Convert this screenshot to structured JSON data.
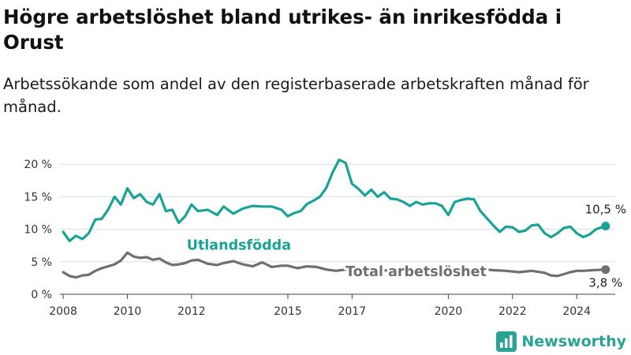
{
  "title": "Högre arbetslöshet bland utrikes- än inrikesfödda i Orust",
  "subtitle": "Arbetssökande som andel av den registerbaserade arbetskraften månad för månad.",
  "brand": {
    "name": "Newsworthy",
    "icon": "bar-chart-logo-icon",
    "color": "#2aa394"
  },
  "colors": {
    "foreign_born": "#1aa394",
    "total": "#6f6e74",
    "axis": "#333333",
    "grid": "#dddddd"
  },
  "chart_data": {
    "type": "line",
    "title": "Högre arbetslöshet bland utrikes- än inrikesfödda i Orust",
    "subtitle": "Arbetssökande som andel av den registerbaserade arbetskraften månad för månad.",
    "xlabel": "",
    "ylabel": "",
    "xlim": [
      2007.9,
      2025.2
    ],
    "ylim": [
      0,
      21
    ],
    "y_ticks": [
      0,
      5,
      10,
      15,
      20
    ],
    "y_tick_labels": [
      "0 %",
      "5 %",
      "10 %",
      "15 %",
      "20 %"
    ],
    "x_ticks": [
      2008,
      2010,
      2012,
      2015,
      2017,
      2020,
      2022,
      2024
    ],
    "x_tick_labels": [
      "2008",
      "2010",
      "2012",
      "2015",
      "2017",
      "2020",
      "2022",
      "2024"
    ],
    "grid": "horizontal",
    "legend": "direct labels on lines",
    "series": [
      {
        "name": "Utlandsfödda",
        "color": "#1aa394",
        "end_label": "10,5 %",
        "points": [
          [
            2008.0,
            9.6
          ],
          [
            2008.2,
            8.2
          ],
          [
            2008.4,
            9.0
          ],
          [
            2008.6,
            8.5
          ],
          [
            2008.8,
            9.4
          ],
          [
            2009.0,
            11.5
          ],
          [
            2009.2,
            11.6
          ],
          [
            2009.4,
            13.0
          ],
          [
            2009.6,
            15.0
          ],
          [
            2009.8,
            13.8
          ],
          [
            2010.0,
            16.3
          ],
          [
            2010.2,
            14.8
          ],
          [
            2010.4,
            15.4
          ],
          [
            2010.6,
            14.2
          ],
          [
            2010.8,
            13.8
          ],
          [
            2011.0,
            15.4
          ],
          [
            2011.2,
            12.8
          ],
          [
            2011.4,
            13.0
          ],
          [
            2011.6,
            11.0
          ],
          [
            2011.8,
            12.0
          ],
          [
            2012.0,
            13.8
          ],
          [
            2012.2,
            12.8
          ],
          [
            2012.5,
            13.0
          ],
          [
            2012.8,
            12.2
          ],
          [
            2013.0,
            13.5
          ],
          [
            2013.3,
            12.4
          ],
          [
            2013.6,
            13.2
          ],
          [
            2013.9,
            13.6
          ],
          [
            2014.2,
            13.5
          ],
          [
            2014.5,
            13.5
          ],
          [
            2014.8,
            13.0
          ],
          [
            2015.0,
            12.0
          ],
          [
            2015.2,
            12.5
          ],
          [
            2015.4,
            12.8
          ],
          [
            2015.6,
            13.9
          ],
          [
            2015.8,
            14.4
          ],
          [
            2016.0,
            15.0
          ],
          [
            2016.2,
            16.4
          ],
          [
            2016.4,
            18.8
          ],
          [
            2016.6,
            20.7
          ],
          [
            2016.8,
            20.2
          ],
          [
            2017.0,
            17.0
          ],
          [
            2017.2,
            16.2
          ],
          [
            2017.4,
            15.2
          ],
          [
            2017.6,
            16.1
          ],
          [
            2017.8,
            15.0
          ],
          [
            2018.0,
            15.7
          ],
          [
            2018.2,
            14.7
          ],
          [
            2018.4,
            14.6
          ],
          [
            2018.6,
            14.2
          ],
          [
            2018.8,
            13.6
          ],
          [
            2019.0,
            14.2
          ],
          [
            2019.2,
            13.8
          ],
          [
            2019.4,
            14.0
          ],
          [
            2019.6,
            14.0
          ],
          [
            2019.8,
            13.6
          ],
          [
            2020.0,
            12.2
          ],
          [
            2020.2,
            14.2
          ],
          [
            2020.4,
            14.5
          ],
          [
            2020.6,
            14.7
          ],
          [
            2020.8,
            14.6
          ],
          [
            2021.0,
            12.8
          ],
          [
            2021.2,
            11.7
          ],
          [
            2021.4,
            10.6
          ],
          [
            2021.6,
            9.6
          ],
          [
            2021.8,
            10.4
          ],
          [
            2022.0,
            10.3
          ],
          [
            2022.2,
            9.6
          ],
          [
            2022.4,
            9.8
          ],
          [
            2022.6,
            10.6
          ],
          [
            2022.8,
            10.7
          ],
          [
            2023.0,
            9.4
          ],
          [
            2023.2,
            8.8
          ],
          [
            2023.4,
            9.4
          ],
          [
            2023.6,
            10.2
          ],
          [
            2023.8,
            10.4
          ],
          [
            2024.0,
            9.4
          ],
          [
            2024.2,
            8.8
          ],
          [
            2024.4,
            9.2
          ],
          [
            2024.6,
            10.0
          ],
          [
            2024.9,
            10.5
          ]
        ]
      },
      {
        "name": "Total arbetslöshet",
        "color": "#6f6e74",
        "end_label": "3,8 %",
        "points": [
          [
            2008.0,
            3.4
          ],
          [
            2008.2,
            2.8
          ],
          [
            2008.4,
            2.6
          ],
          [
            2008.6,
            2.9
          ],
          [
            2008.8,
            3.0
          ],
          [
            2009.0,
            3.6
          ],
          [
            2009.2,
            4.0
          ],
          [
            2009.4,
            4.3
          ],
          [
            2009.6,
            4.6
          ],
          [
            2009.8,
            5.2
          ],
          [
            2010.0,
            6.4
          ],
          [
            2010.2,
            5.8
          ],
          [
            2010.4,
            5.6
          ],
          [
            2010.6,
            5.7
          ],
          [
            2010.8,
            5.3
          ],
          [
            2011.0,
            5.5
          ],
          [
            2011.2,
            4.9
          ],
          [
            2011.4,
            4.5
          ],
          [
            2011.6,
            4.6
          ],
          [
            2011.8,
            4.8
          ],
          [
            2012.0,
            5.2
          ],
          [
            2012.2,
            5.3
          ],
          [
            2012.5,
            4.7
          ],
          [
            2012.8,
            4.5
          ],
          [
            2013.0,
            4.8
          ],
          [
            2013.3,
            5.1
          ],
          [
            2013.6,
            4.6
          ],
          [
            2013.9,
            4.3
          ],
          [
            2014.2,
            4.9
          ],
          [
            2014.5,
            4.2
          ],
          [
            2014.8,
            4.4
          ],
          [
            2015.0,
            4.4
          ],
          [
            2015.3,
            4.0
          ],
          [
            2015.6,
            4.3
          ],
          [
            2015.9,
            4.2
          ],
          [
            2016.2,
            3.8
          ],
          [
            2016.5,
            3.6
          ],
          [
            2016.8,
            3.8
          ],
          [
            2017.0,
            3.8
          ],
          [
            2017.4,
            3.7
          ],
          [
            2017.8,
            3.6
          ],
          [
            2018.2,
            3.7
          ],
          [
            2018.6,
            3.6
          ],
          [
            2019.0,
            3.6
          ],
          [
            2019.4,
            3.6
          ],
          [
            2019.8,
            3.5
          ],
          [
            2020.2,
            3.9
          ],
          [
            2020.6,
            3.8
          ],
          [
            2021.0,
            3.9
          ],
          [
            2021.4,
            3.7
          ],
          [
            2021.8,
            3.6
          ],
          [
            2022.2,
            3.4
          ],
          [
            2022.6,
            3.6
          ],
          [
            2023.0,
            3.3
          ],
          [
            2023.2,
            2.9
          ],
          [
            2023.4,
            2.8
          ],
          [
            2023.6,
            3.1
          ],
          [
            2023.8,
            3.4
          ],
          [
            2024.0,
            3.6
          ],
          [
            2024.2,
            3.6
          ],
          [
            2024.5,
            3.7
          ],
          [
            2024.9,
            3.8
          ]
        ]
      }
    ]
  }
}
